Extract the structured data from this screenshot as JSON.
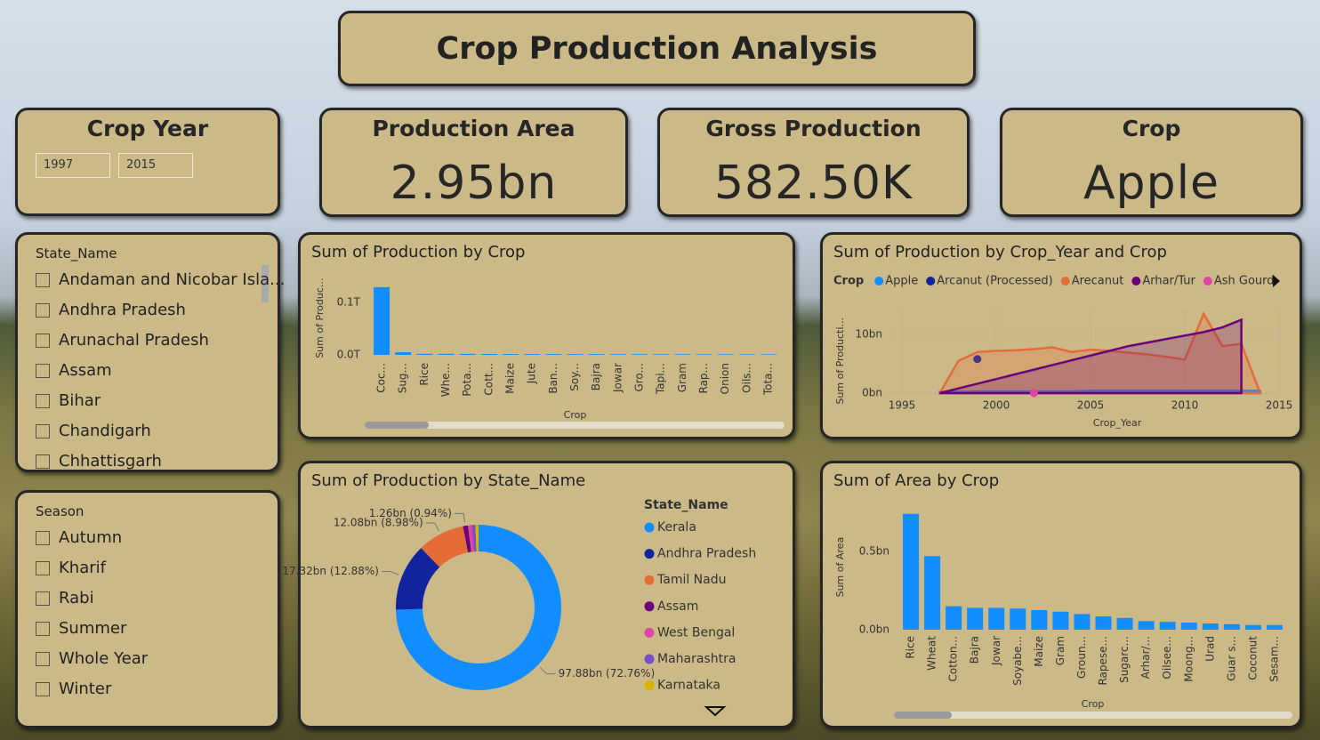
{
  "header": {
    "title": "Crop Production Analysis"
  },
  "crop_year": {
    "title": "Crop Year",
    "from": "1997",
    "to": "2015"
  },
  "cards": [
    {
      "title": "Production Area",
      "value": "2.95bn"
    },
    {
      "title": "Gross Production",
      "value": "582.50K"
    },
    {
      "title": "Crop",
      "value": "Apple"
    }
  ],
  "slicers": [
    {
      "title": "State_Name",
      "items": [
        "Andaman and Nicobar Isla...",
        "Andhra Pradesh",
        "Arunachal Pradesh",
        "Assam",
        "Bihar",
        "Chandigarh",
        "Chhattisgarh"
      ]
    },
    {
      "title": "Season",
      "items": [
        "Autumn",
        "Kharif",
        "Rabi",
        "Summer",
        "Whole Year",
        "Winter"
      ]
    }
  ],
  "chart_data": [
    {
      "type": "bar",
      "title": "Sum of Production by Crop",
      "xlabel": "Crop",
      "ylabel": "Sum of Produc...",
      "categories": [
        "Coc...",
        "Sug...",
        "Rice",
        "Whe...",
        "Pota...",
        "Cott...",
        "Maize",
        "Jute",
        "Ban...",
        "Soy...",
        "Bajra",
        "Jowar",
        "Gro...",
        "Tapi...",
        "Gram",
        "Rap...",
        "Onion",
        "Oils...",
        "Tota..."
      ],
      "values": [
        0.129,
        0.005,
        0.002,
        0.002,
        0.0018,
        0.0017,
        0.0016,
        0.0015,
        0.0015,
        0.0014,
        0.0014,
        0.0013,
        0.0013,
        0.0012,
        0.0012,
        0.0011,
        0.0011,
        0.001,
        0.001
      ],
      "color": "#118dff",
      "ylim": [
        0,
        0.14
      ],
      "yticks": [
        {
          "value": 0,
          "label": "0.0T"
        },
        {
          "value": 0.1,
          "label": "0.1T"
        }
      ],
      "grid": false
    },
    {
      "type": "area",
      "title": "Sum of Production by Crop_Year and Crop",
      "xlabel": "Crop_Year",
      "ylabel": "Sum of Producti...",
      "legend_title": "Crop",
      "x": [
        1997,
        1998,
        1999,
        2000,
        2001,
        2002,
        2003,
        2004,
        2005,
        2006,
        2007,
        2008,
        2009,
        2010,
        2011,
        2012,
        2013,
        2014
      ],
      "series": [
        {
          "name": "Apple",
          "color": "#118dff",
          "values": [
            0.2,
            0.2,
            0.3,
            0.3,
            0.3,
            0.3,
            0.3,
            0.3,
            0.4,
            0.4,
            0.4,
            0.4,
            0.4,
            0.4,
            0.4,
            0.4,
            0.4,
            0.4
          ]
        },
        {
          "name": "Arcanut (Processed)",
          "color": "#12239e",
          "values": [
            null,
            null,
            5.8,
            null,
            null,
            null,
            null,
            null,
            null,
            null,
            null,
            null,
            null,
            null,
            null,
            null,
            null,
            null
          ]
        },
        {
          "name": "Arecanut",
          "color": "#e66c37",
          "values": [
            0,
            5.5,
            7,
            7.2,
            7.3,
            7.5,
            7.8,
            7,
            7.4,
            7.2,
            6.9,
            6.6,
            6.2,
            5.7,
            13.5,
            8,
            8.4,
            0
          ]
        },
        {
          "name": "Arhar/Tur",
          "color": "#6b007b",
          "values": [
            0,
            0.8,
            1.6,
            2.4,
            3.2,
            4,
            4.8,
            5.6,
            6.4,
            7.2,
            8,
            8.6,
            9.2,
            9.8,
            10.4,
            11.2,
            12.5,
            null
          ]
        },
        {
          "name": "Ash Gourd",
          "color": "#e044a7",
          "values": [
            null,
            null,
            null,
            null,
            null,
            0,
            null,
            null,
            null,
            null,
            null,
            null,
            null,
            null,
            null,
            null,
            null,
            null
          ]
        }
      ],
      "xlim": [
        1995,
        2015
      ],
      "xticks": [
        1995,
        2000,
        2005,
        2010,
        2015
      ],
      "ylim": [
        0,
        14
      ],
      "yticks": [
        {
          "value": 0,
          "label": "0bn"
        },
        {
          "value": 10,
          "label": "10bn"
        }
      ],
      "grid": true
    },
    {
      "type": "donut",
      "title": "Sum of Production by State_Name",
      "legend_title": "State_Name",
      "categories": [
        "Kerala",
        "Andhra Pradesh",
        "Tamil Nadu",
        "Assam",
        "West Bengal",
        "Maharashtra",
        "Karnataka"
      ],
      "values": [
        97.88,
        17.32,
        12.08,
        1.26,
        1.0,
        0.9,
        0.8
      ],
      "value_labels": [
        "97.88bn (72.76%)",
        "17.32bn (12.88%)",
        "12.08bn (8.98%)",
        "1.26bn (0.94%)",
        null,
        null,
        null
      ],
      "colors": [
        "#118dff",
        "#12239e",
        "#e66c37",
        "#6b007b",
        "#e044a7",
        "#744ec2",
        "#d9b300"
      ]
    },
    {
      "type": "bar",
      "title": "Sum of Area by Crop",
      "xlabel": "Crop",
      "ylabel": "Sum of Area",
      "categories": [
        "Rice",
        "Wheat",
        "Cotton...",
        "Bajra",
        "Jowar",
        "Soyabe...",
        "Maize",
        "Gram",
        "Groun...",
        "Rapese...",
        "Sugarc...",
        "Arhar/...",
        "Oilsee...",
        "Moong...",
        "Urad",
        "Guar s...",
        "Coconut",
        "Sesam..."
      ],
      "values": [
        0.74,
        0.47,
        0.15,
        0.14,
        0.14,
        0.135,
        0.125,
        0.115,
        0.1,
        0.085,
        0.075,
        0.055,
        0.05,
        0.045,
        0.04,
        0.035,
        0.03,
        0.03
      ],
      "color": "#118dff",
      "ylim": [
        0,
        0.8
      ],
      "yticks": [
        {
          "value": 0,
          "label": "0.0bn"
        },
        {
          "value": 0.5,
          "label": "0.5bn"
        }
      ],
      "grid": false
    }
  ]
}
